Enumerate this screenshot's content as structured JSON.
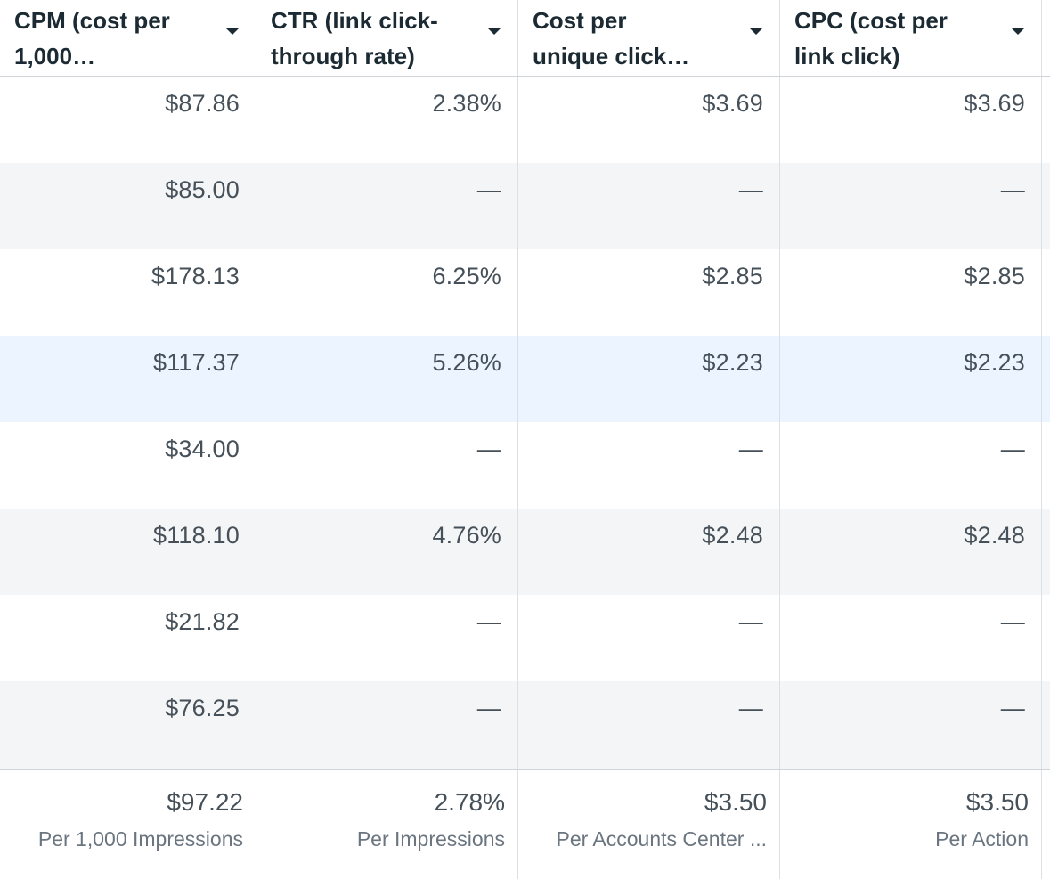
{
  "columns": [
    {
      "label": "CPM (cost per\n1,000…"
    },
    {
      "label": "CTR (link click-\nthrough rate)"
    },
    {
      "label": "Cost per\nunique click…"
    },
    {
      "label": "CPC (cost per\nlink click)"
    }
  ],
  "rows": [
    [
      "$87.86",
      "2.38%",
      "$3.69",
      "$3.69"
    ],
    [
      "$85.00",
      "—",
      "—",
      "—"
    ],
    [
      "$178.13",
      "6.25%",
      "$2.85",
      "$2.85"
    ],
    [
      "$117.37",
      "5.26%",
      "$2.23",
      "$2.23"
    ],
    [
      "$34.00",
      "—",
      "—",
      "—"
    ],
    [
      "$118.10",
      "4.76%",
      "$2.48",
      "$2.48"
    ],
    [
      "$21.82",
      "—",
      "—",
      "—"
    ],
    [
      "$76.25",
      "—",
      "—",
      "—"
    ]
  ],
  "totals": [
    {
      "value": "$97.22",
      "sub": "Per 1,000 Impressions"
    },
    {
      "value": "2.78%",
      "sub": "Per Impressions"
    },
    {
      "value": "$3.50",
      "sub": "Per Accounts Center ..."
    },
    {
      "value": "$3.50",
      "sub": "Per Action"
    }
  ],
  "colors": {
    "header_text": "#1c2b33",
    "cell_text": "#465059",
    "alt_row_bg": "#f4f5f7",
    "selected_row_bg": "#ebf4ff",
    "border": "#dcdfe3"
  }
}
